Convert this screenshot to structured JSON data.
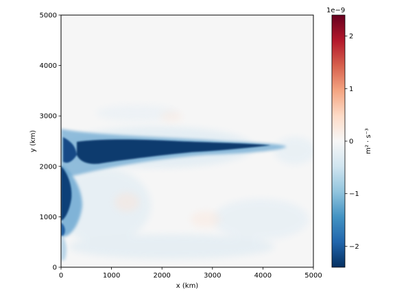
{
  "chart_data": {
    "type": "heatmap",
    "title": "",
    "xlabel": "x (km)",
    "ylabel": "y (km)",
    "xlim": [
      0,
      5000
    ],
    "ylim": [
      0,
      5000
    ],
    "x_ticks": [
      0,
      1000,
      2000,
      3000,
      4000,
      5000
    ],
    "y_ticks": [
      0,
      1000,
      2000,
      3000,
      4000,
      5000
    ],
    "x_tick_labels": [
      "0",
      "1000",
      "2000",
      "3000",
      "4000",
      "5000"
    ],
    "y_tick_labels": [
      "0",
      "1000",
      "2000",
      "3000",
      "4000",
      "5000"
    ],
    "colormap": "RdBu_r",
    "colorbar": {
      "label": "m² · s⁻³",
      "offset_text": "1e−9",
      "vmin": -2.4,
      "vmax": 2.4,
      "ticks": [
        -2,
        -1,
        0,
        1,
        2
      ],
      "tick_labels": [
        "−2",
        "−1",
        "0",
        "1",
        "2"
      ],
      "scale": 1e-09
    },
    "features": [
      {
        "name": "zonal jet band",
        "x_range": [
          0,
          4300
        ],
        "y_center": 2300,
        "value_min": -2.4,
        "description": "strongly negative along y≈2300 km, fading eastward"
      },
      {
        "name": "western boundary",
        "x_range": [
          0,
          400
        ],
        "y_range": [
          600,
          2700
        ],
        "value_min": -2.4
      },
      {
        "name": "background",
        "value": 0.0
      }
    ]
  }
}
